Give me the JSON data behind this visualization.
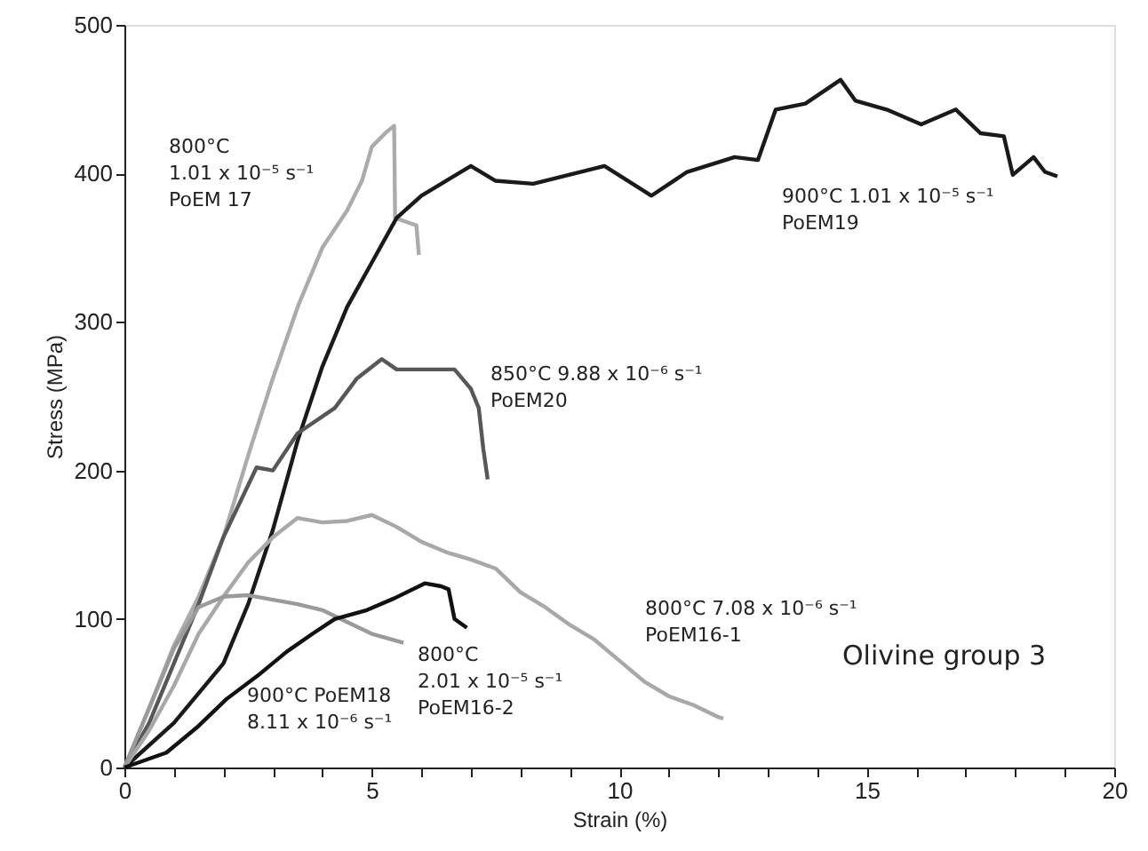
{
  "chart_data": {
    "type": "line",
    "xlabel": "Strain (%)",
    "ylabel": "Stress (MPa)",
    "xlim": [
      0,
      20
    ],
    "ylim": [
      0,
      500
    ],
    "xticks": [
      0,
      {
        "value": 1,
        "label": null
      },
      {
        "value": 2,
        "label": null
      },
      {
        "value": 3,
        "label": null
      },
      {
        "value": 4,
        "label": null
      },
      5,
      {
        "value": 6,
        "label": null
      },
      {
        "value": 7,
        "label": null
      },
      {
        "value": 8,
        "label": null
      },
      {
        "value": 9,
        "label": null
      },
      10,
      {
        "value": 11,
        "label": null
      },
      {
        "value": 12,
        "label": null
      },
      {
        "value": 13,
        "label": null
      },
      {
        "value": 14,
        "label": null
      },
      15,
      {
        "value": 16,
        "label": null
      },
      {
        "value": 17,
        "label": null
      },
      {
        "value": 18,
        "label": null
      },
      {
        "value": 19,
        "label": null
      },
      20
    ],
    "yticks": [
      0,
      100,
      200,
      300,
      400,
      500
    ],
    "grid": false,
    "line_style": "solid",
    "series": [
      {
        "color": "#ababab",
        "x": [
          0,
          0.5,
          1,
          1.5,
          2,
          2.5,
          3,
          3.5,
          4,
          4.5,
          4.8,
          5,
          5.3,
          5.45,
          5.47,
          5.9,
          5.95
        ],
        "values": [
          0,
          40,
          82,
          115,
          155,
          210,
          262,
          310,
          350,
          375,
          395,
          418,
          428,
          432,
          370,
          365,
          345
        ]
      },
      {
        "color": "#1a1a1a",
        "x": [
          0,
          1,
          2,
          2.5,
          3,
          3.5,
          4,
          4.5,
          5,
          5.5,
          6,
          6.5,
          7,
          7.5,
          8.26,
          9.7,
          10.65,
          11.37,
          12.33,
          12.8,
          13.16,
          13.76,
          14.47,
          14.77,
          15.4,
          16.1,
          16.8,
          17.3,
          17.77,
          17.95,
          18.37,
          18.6,
          18.85
        ],
        "values": [
          0,
          30,
          70,
          110,
          160,
          220,
          270,
          310,
          340,
          370,
          385,
          395,
          405,
          395,
          393,
          405,
          385,
          401,
          411,
          409,
          443,
          447,
          463,
          449,
          443,
          433,
          443,
          427,
          425,
          399,
          411,
          401,
          398
        ]
      },
      {
        "color": "#575757",
        "x": [
          0,
          0.5,
          1,
          1.5,
          2,
          2.67,
          3,
          3.5,
          4.25,
          4.7,
          5.2,
          5.5,
          6,
          6.67,
          7,
          7.16,
          7.25,
          7.34
        ],
        "values": [
          0,
          30,
          70,
          110,
          155,
          202,
          200,
          225,
          242,
          262,
          275,
          268,
          268,
          268,
          255,
          242,
          215,
          194
        ]
      },
      {
        "color": "#a8a8a8",
        "x": [
          0,
          0.5,
          1,
          1.5,
          2,
          2.5,
          3,
          3.5,
          4,
          4.5,
          5,
          5.5,
          6,
          6.5,
          7,
          7.5,
          8,
          8.5,
          9,
          9.5,
          10,
          10.5,
          11,
          11.5,
          12,
          12.1
        ],
        "values": [
          0,
          25,
          55,
          90,
          115,
          138,
          155,
          168,
          165,
          166,
          170,
          162,
          152,
          145,
          140,
          134,
          118,
          108,
          96,
          86,
          72,
          58,
          48,
          42,
          34,
          33
        ]
      },
      {
        "color": "#9a9a9a",
        "x": [
          0,
          0.5,
          1,
          1.5,
          2,
          2.5,
          3,
          3.5,
          4,
          4.5,
          5,
          5.64
        ],
        "values": [
          0,
          40,
          80,
          108,
          115,
          116,
          113,
          110,
          106,
          98,
          90,
          84
        ]
      },
      {
        "color": "#111111",
        "x": [
          0,
          0.85,
          1.5,
          2.06,
          2.7,
          3.28,
          3.8,
          4.25,
          4.9,
          5.46,
          6.07,
          6.4,
          6.55,
          6.67,
          6.92
        ],
        "values": [
          0,
          10,
          28,
          46,
          62,
          78,
          90,
          100,
          106,
          114,
          124,
          122,
          120,
          100,
          94
        ]
      }
    ],
    "annotations": [
      "800°C\n1.01 x 10⁻⁵ s⁻¹\nPoEM 17",
      "900°C  1.01 x 10⁻⁵ s⁻¹\nPoEM19",
      "850°C  9.88 x 10⁻⁶ s⁻¹\nPoEM20",
      "800°C  7.08 x 10⁻⁶ s⁻¹\nPoEM16-1",
      "900°C PoEM18\n8.11 x 10⁻⁶ s⁻¹",
      "800°C\n2.01 x 10⁻⁵ s⁻¹\nPoEM16-2",
      "Olivine  group 3"
    ]
  }
}
